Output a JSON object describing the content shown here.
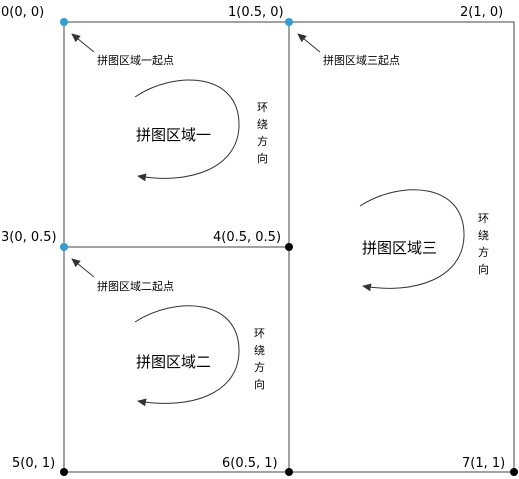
{
  "points": [
    {
      "label": "0(0, 0)",
      "color": "#2e9ed6"
    },
    {
      "label": "1(0.5, 0)",
      "color": "#2e9ed6"
    },
    {
      "label": "2(1, 0)",
      "color": ""
    },
    {
      "label": "3(0, 0.5)",
      "color": "#2e9ed6"
    },
    {
      "label": "4(0.5, 0.5)",
      "color": "#000000"
    },
    {
      "label": "5(0, 1)",
      "color": "#000000"
    },
    {
      "label": "6(0.5, 1)",
      "color": "#000000"
    },
    {
      "label": "7(1, 1)",
      "color": "#000000"
    }
  ],
  "regions": [
    {
      "name": "拼图区域一",
      "start_note": "拼图区域一起点",
      "direction": [
        "环",
        "绕",
        "方",
        "向"
      ]
    },
    {
      "name": "拼图区域二",
      "start_note": "拼图区域二起点",
      "direction": [
        "环",
        "绕",
        "方",
        "向"
      ]
    },
    {
      "name": "拼图区域三",
      "start_note": "拼图区域三起点",
      "direction": [
        "环",
        "绕",
        "方",
        "向"
      ]
    }
  ]
}
